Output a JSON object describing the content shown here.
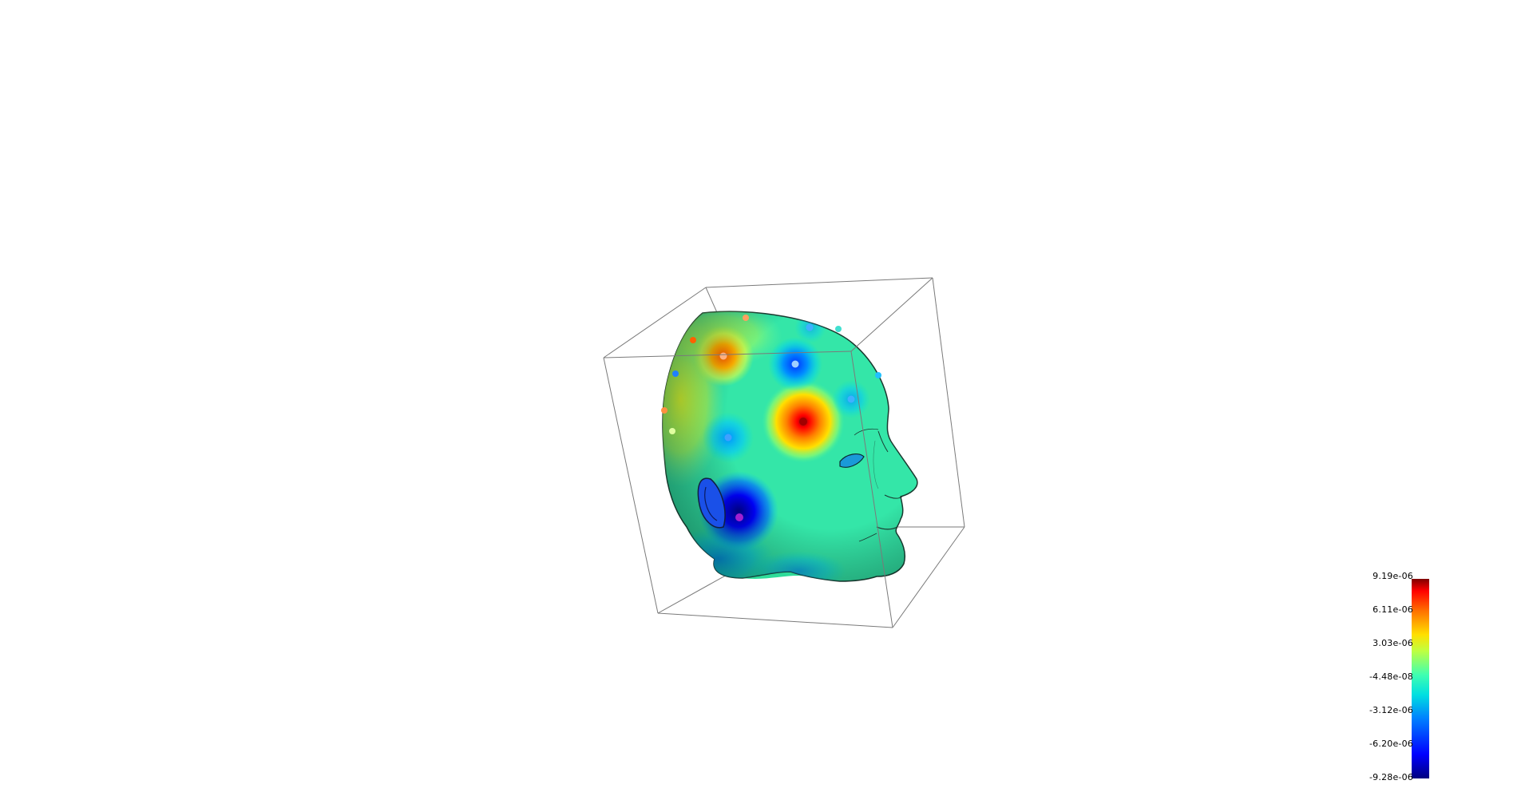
{
  "colorbar": {
    "ticks": [
      "9.19e-06",
      "6.11e-06",
      "3.03e-06",
      "-4.48e-08",
      "-3.12e-06",
      "-6.20e-06",
      "-9.28e-06"
    ],
    "min": -9.28e-06,
    "max": 9.19e-06,
    "colormap": [
      "#00007f",
      "#0000ff",
      "#0080ff",
      "#00e0e0",
      "#40ffb0",
      "#c0ff40",
      "#ffe000",
      "#ff7000",
      "#ff0000",
      "#7f0000"
    ]
  },
  "scene": {
    "object": "head-surface",
    "base_color": "#2ee0a8",
    "bounding_box_color": "#808080",
    "background": "#ffffff"
  }
}
